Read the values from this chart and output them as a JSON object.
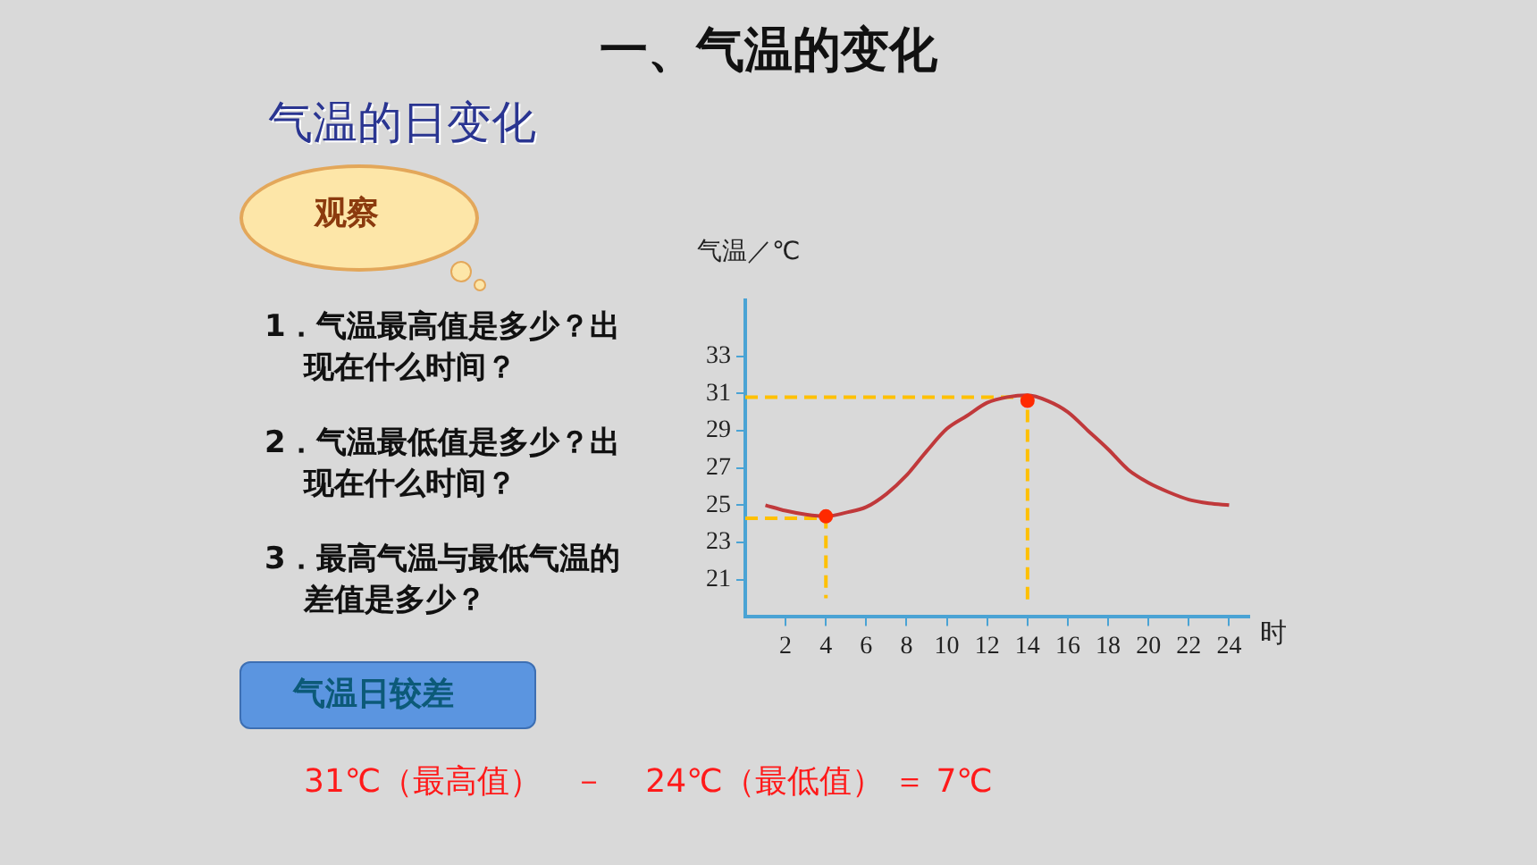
{
  "chart_data": {
    "type": "line",
    "title": "一、气温的变化",
    "subtitle": "气温的日变化",
    "xlabel": "时",
    "ylabel": "气温／℃",
    "x": [
      1,
      2,
      3,
      4,
      5,
      6,
      7,
      8,
      9,
      10,
      11,
      12,
      13,
      14,
      15,
      16,
      17,
      18,
      19,
      20,
      21,
      22,
      23,
      24
    ],
    "series": [
      {
        "color": "#c0393b",
        "values": [
          25.0,
          24.7,
          24.5,
          24.4,
          24.6,
          24.9,
          25.6,
          26.6,
          27.9,
          29.1,
          29.8,
          30.5,
          30.8,
          30.9,
          30.6,
          30.0,
          29.0,
          28.0,
          26.9,
          26.2,
          25.7,
          25.3,
          25.1,
          25.0
        ]
      },
      {
        "type": "scatter",
        "x": [
          4,
          14
        ],
        "values": [
          24.4,
          30.6
        ],
        "color": "#ff2a00",
        "marker": "circle"
      },
      {
        "x": [
          0,
          14,
          14
        ],
        "values": [
          30.8,
          30.8,
          19.7
        ],
        "color": "#ffc000",
        "line_style": "dashed"
      },
      {
        "x": [
          0,
          4,
          4
        ],
        "values": [
          24.3,
          24.3,
          20.0
        ],
        "color": "#ffc000",
        "line_style": "dashed"
      }
    ],
    "xlim": [
      0,
      25
    ],
    "ylim": [
      19,
      36
    ],
    "xticks": [
      2,
      4,
      6,
      8,
      10,
      12,
      14,
      16,
      18,
      20,
      22,
      24
    ],
    "yticks": [
      21,
      23,
      25,
      27,
      29,
      31,
      33
    ],
    "grid": false,
    "legend": false,
    "marker": "none",
    "line_style": "solid",
    "annotations": [
      "观察",
      "1．气温最高值是多少？出现在什么时间？",
      "2．气温最低值是多少？出现在什么时间？",
      "3．最高气温与最低气温的差值是多少？",
      "气温日较差",
      "31℃（最高值）   －    24℃（最低值） ＝ 7℃"
    ]
  }
}
